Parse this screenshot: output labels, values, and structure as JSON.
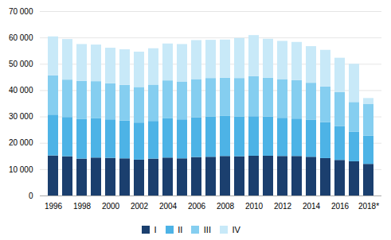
{
  "chart_data": {
    "type": "bar",
    "stacked": true,
    "categories": [
      "1996",
      null,
      "1998",
      null,
      "2000",
      null,
      "2002",
      null,
      "2004",
      null,
      "2006",
      null,
      "2008",
      null,
      "2010",
      null,
      "2012",
      null,
      "2014",
      null,
      "2016",
      null,
      "2018*"
    ],
    "series": [
      {
        "name": "I",
        "color": "#1b3f6e",
        "values": [
          15200,
          14900,
          14000,
          14400,
          14300,
          14100,
          13600,
          14000,
          14400,
          14100,
          14600,
          14700,
          15000,
          14900,
          15100,
          15100,
          15000,
          15000,
          14700,
          14200,
          13500,
          13000,
          12000
        ]
      },
      {
        "name": "II",
        "color": "#4db3e6",
        "values": [
          15500,
          14900,
          15000,
          14900,
          14600,
          14400,
          14100,
          14300,
          14900,
          14800,
          15100,
          15200,
          15200,
          15000,
          15000,
          14900,
          14500,
          14200,
          14000,
          13700,
          12900,
          11200,
          10700
        ]
      },
      {
        "name": "III",
        "color": "#85cef0",
        "values": [
          14900,
          14200,
          14500,
          14100,
          13700,
          13500,
          13500,
          13800,
          14400,
          14400,
          14500,
          14700,
          14500,
          14700,
          15200,
          14700,
          14700,
          14600,
          14100,
          13500,
          12900,
          11300,
          12000
        ]
      },
      {
        "name": "IV",
        "color": "#c8e9f8",
        "values": [
          14800,
          15400,
          14000,
          13900,
          13500,
          13500,
          13400,
          13800,
          14000,
          14200,
          14800,
          14500,
          14500,
          15200,
          15600,
          14800,
          14500,
          14500,
          13900,
          13900,
          13000,
          14500,
          2300
        ]
      }
    ],
    "ylim": [
      0,
      70000
    ],
    "yticks": [
      0,
      {
        "value": 10000,
        "label": "10 000"
      },
      {
        "value": 20000,
        "label": "20 000"
      },
      {
        "value": 30000,
        "label": "30 000"
      },
      {
        "value": 40000,
        "label": "40 000"
      },
      {
        "value": 50000,
        "label": "50 000"
      },
      {
        "value": 60000,
        "label": "60 000"
      },
      {
        "value": 70000,
        "label": "70 000"
      }
    ],
    "grid": true,
    "legend": "bottom"
  }
}
